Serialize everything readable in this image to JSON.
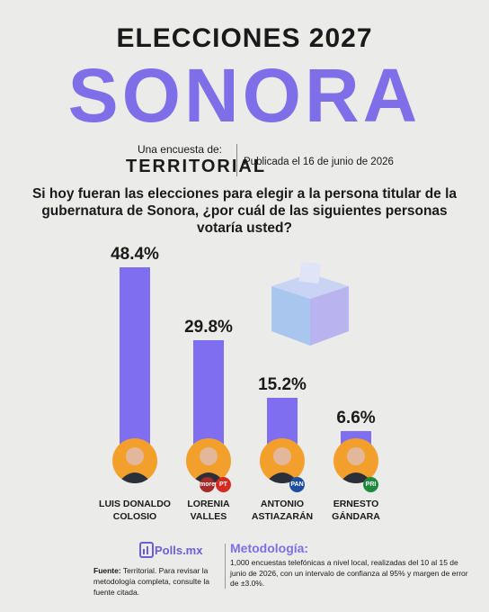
{
  "header": {
    "title": "ELECCIONES 2027",
    "state": "SONORA",
    "byline": "Una encuesta de:",
    "pollster": "TERRITORIAL",
    "published": "Publicada el 16 de junio de 2026",
    "question": "Si hoy fueran las elecciones para elegir a la persona titular de la gubernatura de Sonora, ¿por cuál de las siguientes personas votaría usted?"
  },
  "chart_data": {
    "type": "bar",
    "categories": [
      "LUIS DONALDO COLOSIO",
      "LORENIA VALLES",
      "ANTONIO ASTIAZARÁN",
      "ERNESTO GÁNDARA"
    ],
    "values": [
      48.4,
      29.8,
      15.2,
      6.6
    ],
    "value_labels": [
      "48.4%",
      "29.8%",
      "15.2%",
      "6.6%"
    ],
    "color": "#7f6ff0",
    "party_labels": [
      [],
      [
        "morena",
        "PT"
      ],
      [
        "PAN"
      ],
      [
        "PRI"
      ]
    ]
  },
  "footer": {
    "brand": "Polls.mx",
    "source_label": "Fuente:",
    "source_text": "Territorial. Para revisar la metodología completa, consulte la fuente citada.",
    "methodology_title": "Metodología:",
    "methodology_text": "1,000 encuestas telefónicas a nivel local, realizadas del 10 al 15 de junio de 2026, con un intervalo de confianza al 95% y margen de error de ±3.0%."
  }
}
